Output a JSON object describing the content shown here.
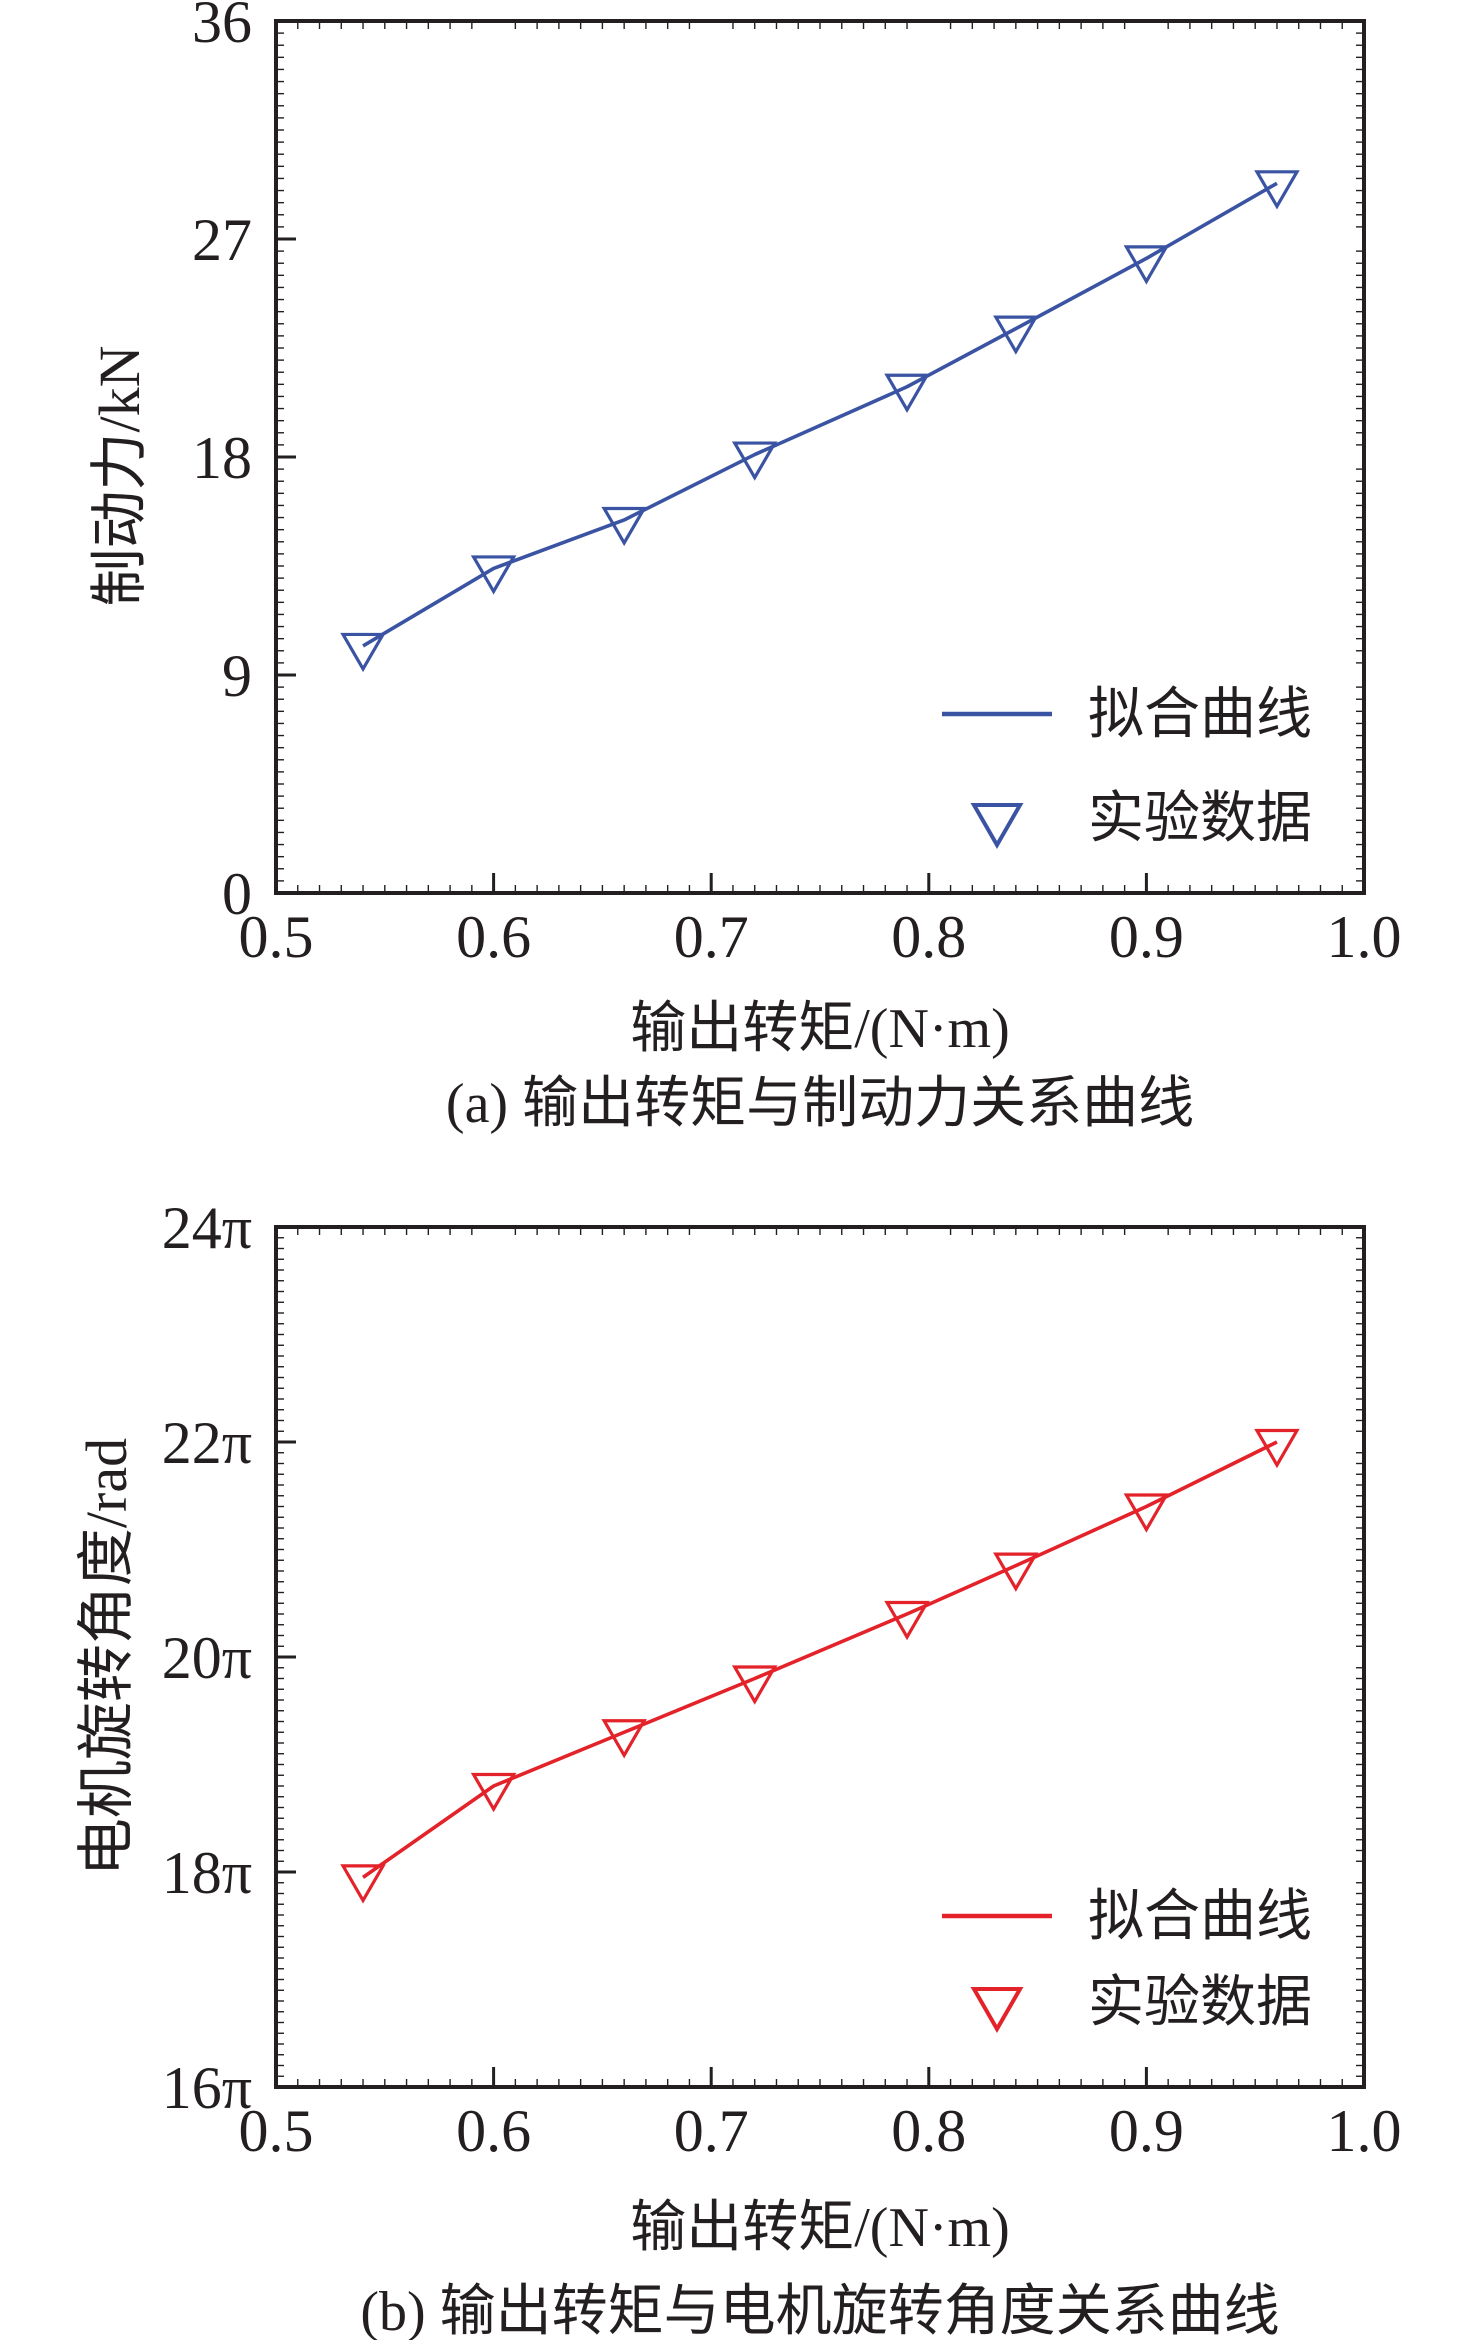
{
  "colors": {
    "background": "#ffffff",
    "axis": "#231f20",
    "text": "#231f20",
    "series_a_blue": "#3a53a3",
    "series_b_red": "#e3222a"
  },
  "chart_data": [
    {
      "id": "a",
      "type": "line",
      "panel_caption": "(a) 输出转矩与制动力关系曲线",
      "xlabel": "输出转矩/(N·m)",
      "ylabel": "制动力/kN",
      "xlim": [
        0.5,
        1.0
      ],
      "ylim": [
        0,
        36
      ],
      "xticks": [
        0.5,
        0.6,
        0.7,
        0.8,
        0.9,
        1.0
      ],
      "xtick_labels": [
        "0.5",
        "0.6",
        "0.7",
        "0.8",
        "0.9",
        "1.0"
      ],
      "yticks": [
        0,
        9,
        18,
        27,
        36
      ],
      "ytick_labels": [
        "0",
        "9",
        "18",
        "27",
        "36"
      ],
      "grid": false,
      "legend_position": "inside-lower-right",
      "legend": [
        {
          "swatch": "line",
          "label": "拟合曲线"
        },
        {
          "swatch": "triangle-down",
          "label": "实验数据"
        }
      ],
      "x": [
        0.54,
        0.6,
        0.66,
        0.72,
        0.79,
        0.84,
        0.9,
        0.96
      ],
      "y": [
        10.2,
        13.4,
        15.4,
        18.1,
        20.9,
        23.3,
        26.2,
        29.3
      ],
      "color_key": "series_a_blue"
    },
    {
      "id": "b",
      "type": "line",
      "panel_caption": "(b) 输出转矩与电机旋转角度关系曲线",
      "xlabel": "输出转矩/(N·m)",
      "ylabel": "电机旋转角度/rad",
      "y_unit": "π rad",
      "xlim": [
        0.5,
        1.0
      ],
      "ylim": [
        16,
        24
      ],
      "xticks": [
        0.5,
        0.6,
        0.7,
        0.8,
        0.9,
        1.0
      ],
      "xtick_labels": [
        "0.5",
        "0.6",
        "0.7",
        "0.8",
        "0.9",
        "1.0"
      ],
      "yticks": [
        16,
        18,
        20,
        22,
        24
      ],
      "ytick_labels": [
        "16π",
        "18π",
        "20π",
        "22π",
        "24π"
      ],
      "grid": false,
      "legend_position": "inside-lower-right",
      "legend": [
        {
          "swatch": "line",
          "label": "拟合曲线"
        },
        {
          "swatch": "triangle-down",
          "label": "实验数据"
        }
      ],
      "x": [
        0.54,
        0.6,
        0.66,
        0.72,
        0.79,
        0.84,
        0.9,
        0.96
      ],
      "y": [
        17.95,
        18.8,
        19.3,
        19.8,
        20.4,
        20.85,
        21.4,
        22.0
      ],
      "color_key": "series_b_red"
    }
  ]
}
